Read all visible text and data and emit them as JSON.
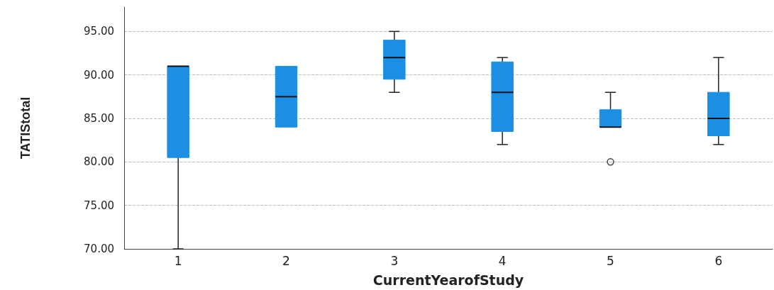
{
  "chart_data": {
    "type": "box",
    "xlabel": "CurrentYearofStudy",
    "ylabel": "TATIStotal",
    "categories": [
      "1",
      "2",
      "3",
      "4",
      "5",
      "6"
    ],
    "color": "#1a8fe3",
    "grid": "y",
    "ylim": [
      70,
      97.8
    ],
    "yticks": [
      {
        "value": 70,
        "label": "70.00"
      },
      {
        "value": 75,
        "label": "75.00"
      },
      {
        "value": 80,
        "label": "80.00"
      },
      {
        "value": 85,
        "label": "85.00"
      },
      {
        "value": 90,
        "label": "90.00"
      },
      {
        "value": 95,
        "label": "95.00"
      }
    ],
    "boxes": [
      {
        "low": 70,
        "q1": 80.5,
        "median": 91,
        "q3": 91,
        "high": 91
      },
      {
        "low": 84,
        "q1": 84,
        "median": 87.5,
        "q3": 91,
        "high": 91
      },
      {
        "low": 88,
        "q1": 89.5,
        "median": 92,
        "q3": 94,
        "high": 95
      },
      {
        "low": 82,
        "q1": 83.5,
        "median": 88,
        "q3": 91.5,
        "high": 92
      },
      {
        "low": 84,
        "q1": 84,
        "median": 84,
        "q3": 86,
        "high": 88,
        "outliers": [
          80
        ]
      },
      {
        "low": 82,
        "q1": 83,
        "median": 85,
        "q3": 88,
        "high": 92
      }
    ]
  }
}
